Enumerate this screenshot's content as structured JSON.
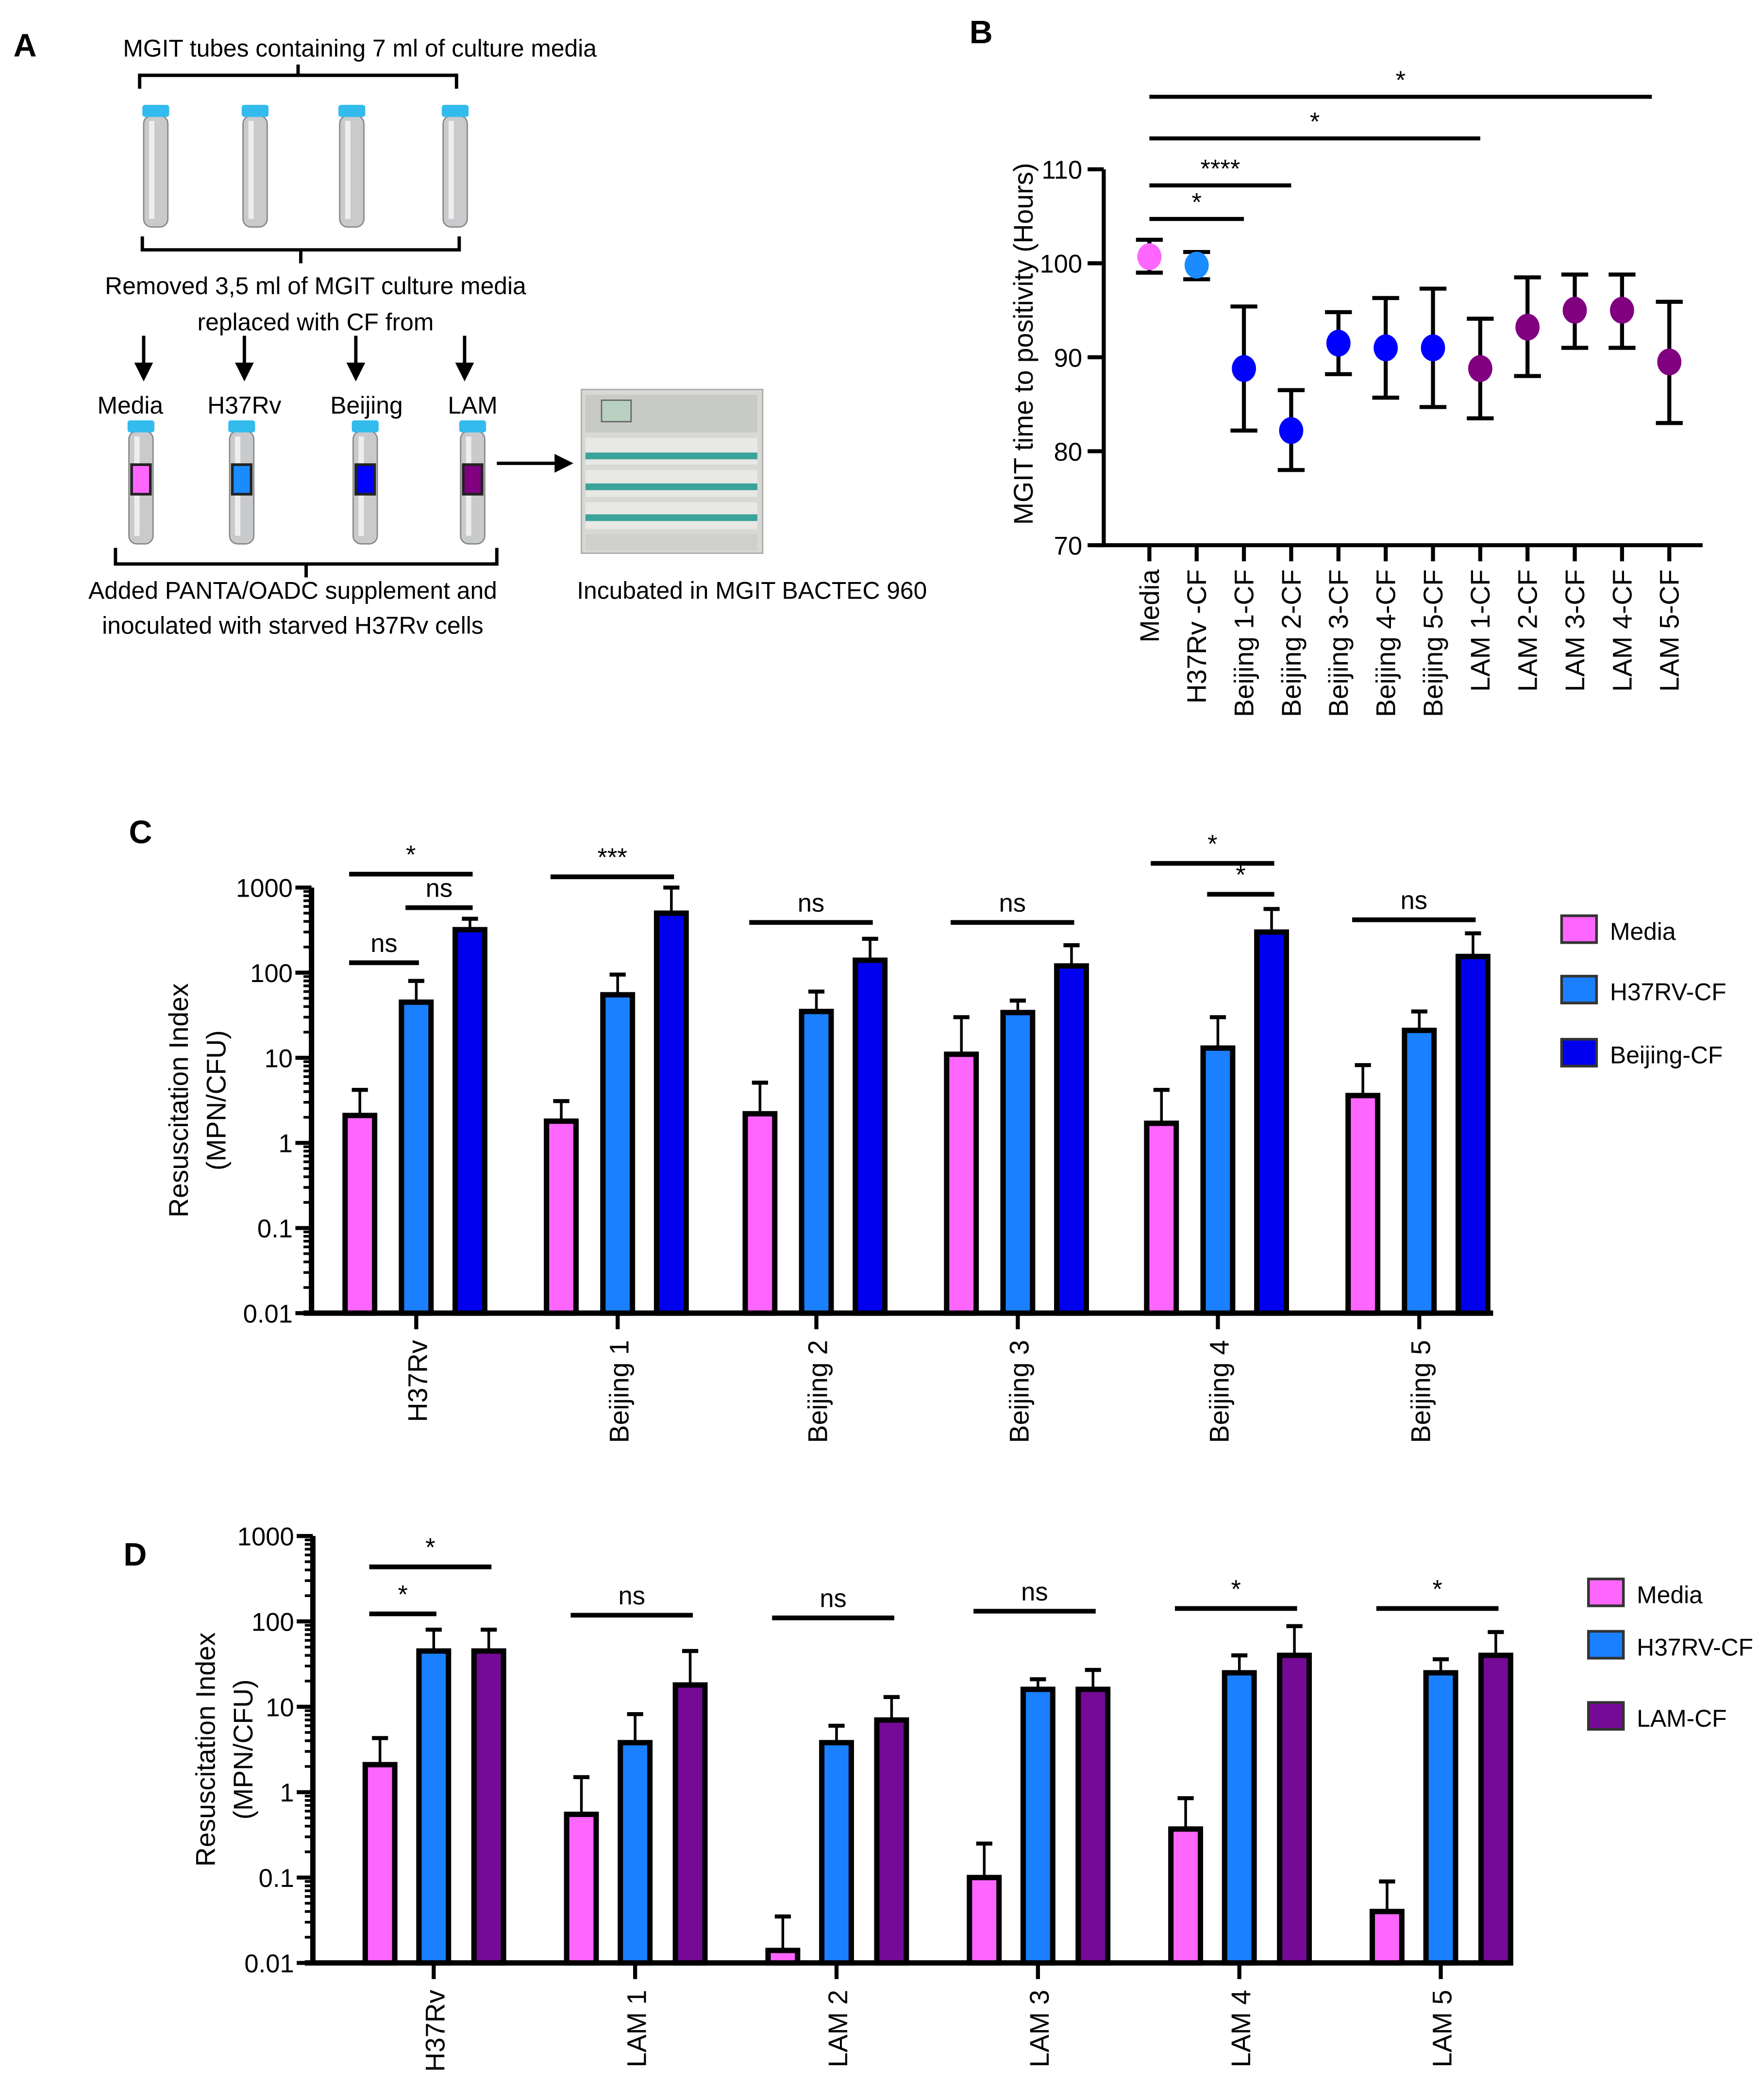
{
  "panels": {
    "a": "A",
    "b": "B",
    "c": "C",
    "d": "D"
  },
  "schematic": {
    "title": "MGIT tubes containing 7 ml of culture media",
    "removed_line1": "Removed 3,5 ml of MGIT culture media",
    "removed_line2": "replaced with CF from",
    "tube_labels": [
      "Media",
      "H37Rv",
      "Beijing",
      "LAM"
    ],
    "tube_colors": [
      "#ff66ff",
      "#1a8cff",
      "#0000ff",
      "#800080"
    ],
    "added_line1": "Added PANTA/OADC supplement and",
    "added_line2": "inoculated with starved H37Rv cells",
    "incubated": "Incubated in MGIT BACTEC 960"
  },
  "chart_data": [
    {
      "panel": "B",
      "type": "scatter",
      "ylabel": "MGIT time to positivity (Hours)",
      "ylim": [
        70,
        110
      ],
      "yticks": [
        "70",
        "80",
        "90",
        "100",
        "110"
      ],
      "categories": [
        "Media",
        "H37Rv -CF",
        "Beijing 1-CF",
        "Beijing 2-CF",
        "Beijing 3-CF",
        "Beijing 4-CF",
        "Beijing 5-CF",
        "LAM 1-CF",
        "LAM 2-CF",
        "LAM 3-CF",
        "LAM 4-CF",
        "LAM 5-CF"
      ],
      "values": [
        100.7,
        99.8,
        88.8,
        82.2,
        91.5,
        91.0,
        91.0,
        88.8,
        93.2,
        95.0,
        95.0,
        89.5
      ],
      "err_low": [
        99.0,
        98.3,
        82.2,
        78.0,
        88.2,
        85.7,
        84.7,
        83.5,
        88.0,
        91.0,
        91.0,
        83.0
      ],
      "err_high": [
        102.5,
        101.2,
        95.4,
        86.5,
        94.8,
        96.3,
        97.3,
        94.1,
        98.5,
        98.8,
        98.8,
        95.9
      ],
      "colors": [
        "#ff66ff",
        "#1a8cff",
        "#0000ff",
        "#0000ff",
        "#0000ff",
        "#0000ff",
        "#0000ff",
        "#800080",
        "#800080",
        "#800080",
        "#800080",
        "#800080"
      ],
      "significance": [
        {
          "from": 0,
          "to": 11,
          "label": "*"
        },
        {
          "from": 0,
          "to": 7,
          "label": "*"
        },
        {
          "from": 0,
          "to": 3,
          "label": "****"
        },
        {
          "from": 0,
          "to": 2,
          "label": "*"
        }
      ]
    },
    {
      "panel": "C",
      "type": "bar",
      "ylabel": "Resuscitation Index (MPN/CFU)",
      "ylabel_lines": [
        "Resuscitation Index",
        "(MPN/CFU)"
      ],
      "yscale": "log",
      "ylim": [
        0.01,
        1000
      ],
      "yticks": [
        "0.01",
        "0.1",
        "1",
        "10",
        "100",
        "1000"
      ],
      "categories": [
        "H37Rv",
        "Beijing 1",
        "Beijing 2",
        "Beijing 3",
        "Beijing 4",
        "Beijing 5"
      ],
      "legend": "right",
      "series": [
        {
          "name": "Media",
          "color": "#ff66ff",
          "values": [
            2.1,
            1.8,
            2.2,
            11,
            1.7,
            3.6
          ],
          "err_high": [
            4.2,
            3.1,
            5.1,
            30,
            4.2,
            8.2
          ]
        },
        {
          "name": "H37RV-CF",
          "color": "#1a80ff",
          "values": [
            45,
            55,
            35,
            34,
            13,
            21
          ],
          "err_high": [
            80,
            95,
            60,
            47,
            30,
            35
          ]
        },
        {
          "name": "Beijing-CF",
          "color": "#0000ee",
          "values": [
            320,
            500,
            140,
            120,
            300,
            155
          ],
          "err_high": [
            430,
            1000,
            250,
            210,
            560,
            290
          ]
        }
      ],
      "significance": [
        {
          "group": 0,
          "from": 0,
          "to": 2,
          "label": "*"
        },
        {
          "group": 0,
          "from": 1,
          "to": 2,
          "label": "ns"
        },
        {
          "group": 0,
          "from": 0,
          "to": 1,
          "label": "ns"
        },
        {
          "group": 1,
          "from": 0,
          "to": 2,
          "label": "***"
        },
        {
          "group": 2,
          "from": 0,
          "to": 2,
          "label": "ns"
        },
        {
          "group": 3,
          "from": 0,
          "to": 2,
          "label": "ns"
        },
        {
          "group": 4,
          "from": 0,
          "to": 2,
          "label": "*"
        },
        {
          "group": 4,
          "from": 1,
          "to": 2,
          "label": "*"
        },
        {
          "group": 5,
          "from": 0,
          "to": 2,
          "label": "ns"
        }
      ]
    },
    {
      "panel": "D",
      "type": "bar",
      "ylabel": "Resuscitation Index (MPN/CFU)",
      "ylabel_lines": [
        "Resuscitation Index",
        "(MPN/CFU)"
      ],
      "yscale": "log",
      "ylim": [
        0.01,
        1000
      ],
      "yticks": [
        "0.01",
        "0.1",
        "1",
        "10",
        "100",
        "1000"
      ],
      "categories": [
        "H37Rv",
        "LAM 1",
        "LAM 2",
        "LAM 3",
        "LAM 4",
        "LAM 5"
      ],
      "legend": "right",
      "series": [
        {
          "name": "Media",
          "color": "#ff66ff",
          "values": [
            2.1,
            0.55,
            0.014,
            0.1,
            0.37,
            0.04
          ],
          "err_high": [
            4.3,
            1.5,
            0.035,
            0.25,
            0.85,
            0.09
          ]
        },
        {
          "name": "H37RV-CF",
          "color": "#1a80ff",
          "values": [
            45,
            3.8,
            3.8,
            16,
            25,
            25
          ],
          "err_high": [
            80,
            8.2,
            6,
            21,
            40,
            36
          ]
        },
        {
          "name": "LAM-CF",
          "color": "#750a96",
          "values": [
            45,
            18,
            7,
            16,
            40,
            40
          ],
          "err_high": [
            80,
            45,
            13,
            27,
            88,
            75
          ]
        }
      ],
      "significance": [
        {
          "group": 0,
          "from": 0,
          "to": 2,
          "label": "*"
        },
        {
          "group": 0,
          "from": 0,
          "to": 1,
          "label": "*"
        },
        {
          "group": 1,
          "from": 0,
          "to": 2,
          "label": "ns"
        },
        {
          "group": 2,
          "from": 0,
          "to": 2,
          "label": "ns"
        },
        {
          "group": 3,
          "from": 0,
          "to": 2,
          "label": "ns"
        },
        {
          "group": 4,
          "from": 0,
          "to": 2,
          "label": "*"
        },
        {
          "group": 5,
          "from": 0,
          "to": 2,
          "label": "*"
        }
      ]
    }
  ]
}
